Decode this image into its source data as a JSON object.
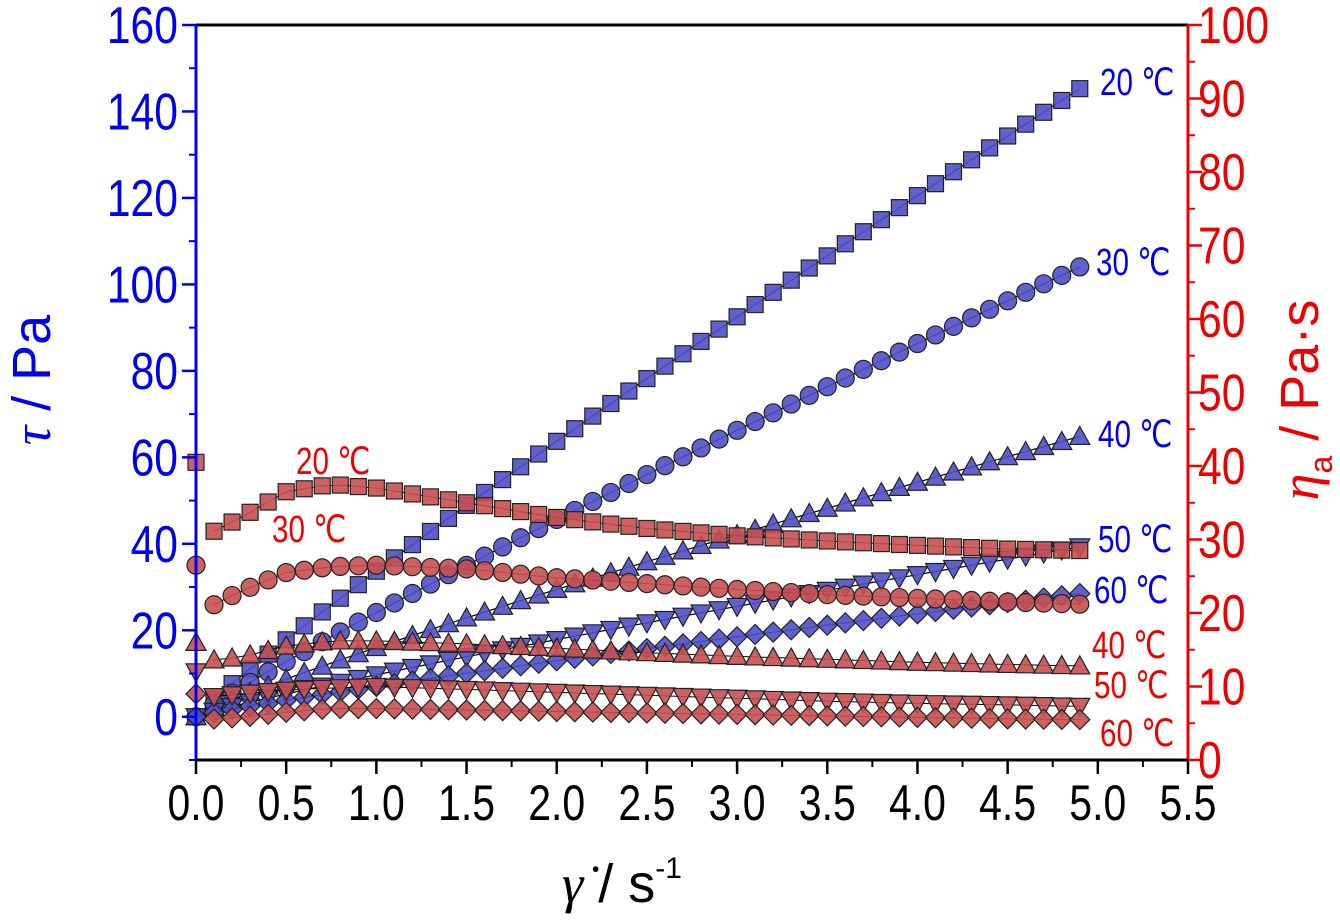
{
  "colors": {
    "left_axis": "#0000ee",
    "right_axis": "#ee0000",
    "x_axis": "#000000",
    "blue_fill": "#5050c8",
    "red_fill": "#c85050",
    "marker_stroke": "#222222"
  },
  "chart_data": {
    "type": "scatter",
    "title": "",
    "x_axis": {
      "label_symbol": "γ̇",
      "label_unit": "/ s",
      "label_unit_sup": "-1",
      "range": [
        0,
        5.5
      ],
      "ticks": [
        "0.0",
        "0.5",
        "1.0",
        "1.5",
        "2.0",
        "2.5",
        "3.0",
        "3.5",
        "4.0",
        "4.5",
        "5.0",
        "5.5"
      ]
    },
    "y_left": {
      "label_symbol": "τ",
      "label_unit": " / Pa",
      "range": [
        -10,
        160
      ],
      "ticks": [
        "0",
        "20",
        "40",
        "60",
        "80",
        "100",
        "120",
        "140",
        "160"
      ]
    },
    "y_right": {
      "label_symbol": "η",
      "label_sub": "a",
      "label_unit": " / Pa·s",
      "range": [
        0,
        100
      ],
      "ticks": [
        "0",
        "10",
        "20",
        "30",
        "40",
        "50",
        "60",
        "70",
        "80",
        "90",
        "100"
      ]
    },
    "grid": false,
    "shear_stress_series": [
      {
        "name": "20 ℃",
        "marker": "square",
        "axis": "left",
        "tau_at_5": 148,
        "x_end": 4.9
      },
      {
        "name": "30 ℃",
        "marker": "circle",
        "axis": "left",
        "tau_at_5": 106,
        "x_end": 4.9
      },
      {
        "name": "40 ℃",
        "marker": "triangle-up",
        "axis": "left",
        "tau_at_5": 66,
        "x_end": 4.9
      },
      {
        "name": "50 ℃",
        "marker": "triangle-down",
        "axis": "left",
        "tau_at_5": 40,
        "x_end": 4.9
      },
      {
        "name": "60 ℃",
        "marker": "diamond",
        "axis": "left",
        "tau_at_5": 29,
        "x_end": 4.9
      }
    ],
    "viscosity_series": [
      {
        "name": "20 ℃",
        "marker": "square",
        "axis": "right",
        "points": [
          [
            0,
            40.5
          ],
          [
            0.05,
            30.5
          ],
          [
            0.25,
            33
          ],
          [
            0.5,
            36.5
          ],
          [
            0.75,
            37.5
          ],
          [
            1.0,
            37
          ],
          [
            1.5,
            35
          ],
          [
            2.0,
            33
          ],
          [
            2.5,
            31.5
          ],
          [
            3.0,
            30.5
          ],
          [
            3.5,
            29.8
          ],
          [
            4.0,
            29.2
          ],
          [
            4.5,
            28.7
          ],
          [
            4.9,
            28.5
          ]
        ]
      },
      {
        "name": "30 ℃",
        "marker": "circle",
        "axis": "right",
        "points": [
          [
            0,
            26.5
          ],
          [
            0.05,
            20.5
          ],
          [
            0.25,
            23
          ],
          [
            0.5,
            25.5
          ],
          [
            0.75,
            26.3
          ],
          [
            1.0,
            26.5
          ],
          [
            1.5,
            26
          ],
          [
            2.0,
            24.8
          ],
          [
            2.5,
            24
          ],
          [
            3.0,
            23.2
          ],
          [
            3.5,
            22.5
          ],
          [
            4.0,
            22
          ],
          [
            4.5,
            21.5
          ],
          [
            4.9,
            21.2
          ]
        ]
      },
      {
        "name": "40 ℃",
        "marker": "triangle-up",
        "axis": "right",
        "points": [
          [
            0,
            16
          ],
          [
            0.05,
            13.5
          ],
          [
            0.25,
            14
          ],
          [
            0.5,
            15.5
          ],
          [
            0.75,
            16.2
          ],
          [
            1.0,
            16.2
          ],
          [
            1.5,
            15.8
          ],
          [
            2.0,
            15.2
          ],
          [
            2.5,
            14.6
          ],
          [
            3.0,
            14.1
          ],
          [
            3.5,
            13.7
          ],
          [
            4.0,
            13.3
          ],
          [
            4.5,
            13
          ],
          [
            4.9,
            12.8
          ]
        ]
      },
      {
        "name": "50 ℃",
        "marker": "triangle-down",
        "axis": "right",
        "points": [
          [
            0,
            12
          ],
          [
            0.05,
            8.5
          ],
          [
            0.25,
            9
          ],
          [
            0.5,
            9.5
          ],
          [
            0.75,
            9.8
          ],
          [
            1.0,
            10
          ],
          [
            1.5,
            9.6
          ],
          [
            2.0,
            9.2
          ],
          [
            2.5,
            8.8
          ],
          [
            3.0,
            8.4
          ],
          [
            3.5,
            8
          ],
          [
            4.0,
            7.7
          ],
          [
            4.5,
            7.5
          ],
          [
            4.9,
            7.3
          ]
        ]
      },
      {
        "name": "60 ℃",
        "marker": "diamond",
        "axis": "right",
        "points": [
          [
            0,
            9
          ],
          [
            0.05,
            5.5
          ],
          [
            0.25,
            5.8
          ],
          [
            0.5,
            6.5
          ],
          [
            0.75,
            7
          ],
          [
            1.0,
            7
          ],
          [
            1.5,
            6.8
          ],
          [
            2.0,
            6.6
          ],
          [
            2.5,
            6.4
          ],
          [
            3.0,
            6.2
          ],
          [
            3.5,
            6
          ],
          [
            4.0,
            5.8
          ],
          [
            4.5,
            5.6
          ],
          [
            4.9,
            5.5
          ]
        ]
      }
    ],
    "annotations": {
      "blue": [
        "20 ℃",
        "30 ℃",
        "40 ℃",
        "50 ℃",
        "60 ℃"
      ],
      "red": [
        "20 ℃",
        "30 ℃",
        "40 ℃",
        "50 ℃",
        "60 ℃"
      ]
    }
  }
}
